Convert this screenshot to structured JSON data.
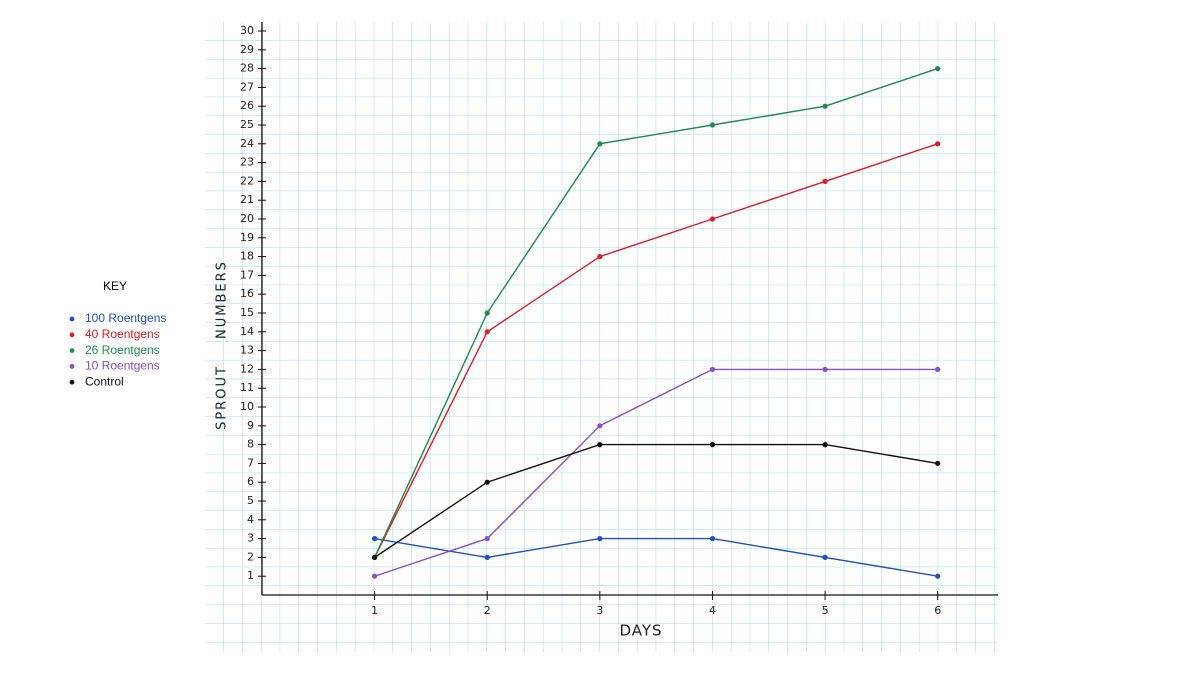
{
  "chart_data": {
    "type": "line",
    "x_label": "DAYS",
    "y_label": "SPROUT NUMBERS",
    "legend_title": "KEY",
    "legend_position": "left",
    "x": [
      1,
      2,
      3,
      4,
      5,
      6
    ],
    "series": [
      {
        "name": "100 Roentgens",
        "color": "#1f4fc4",
        "values": [
          3,
          2,
          3,
          3,
          2,
          1
        ]
      },
      {
        "name": "40 Roentgens",
        "color": "#e01b24",
        "values": [
          2,
          14,
          18,
          20,
          22,
          24
        ]
      },
      {
        "name": "26 Roentgens",
        "color": "#1f8a4a",
        "values": [
          2,
          15,
          24,
          25,
          26,
          28
        ]
      },
      {
        "name": "10 Roentgens",
        "color": "#8a4fc8",
        "values": [
          1,
          3,
          9,
          12,
          12,
          12
        ]
      },
      {
        "name": "Control",
        "color": "#111111",
        "values": [
          2,
          6,
          8,
          8,
          8,
          7
        ]
      }
    ],
    "xlim": [
      0,
      6.5
    ],
    "xticks": [
      1,
      2,
      3,
      4,
      5,
      6
    ],
    "ylim": [
      0,
      30
    ],
    "yticks": [
      1,
      2,
      3,
      4,
      5,
      6,
      7,
      8,
      9,
      10,
      11,
      12,
      13,
      14,
      15,
      16,
      17,
      18,
      19,
      20,
      21,
      22,
      23,
      24,
      25,
      26,
      27,
      28,
      29,
      30
    ]
  }
}
